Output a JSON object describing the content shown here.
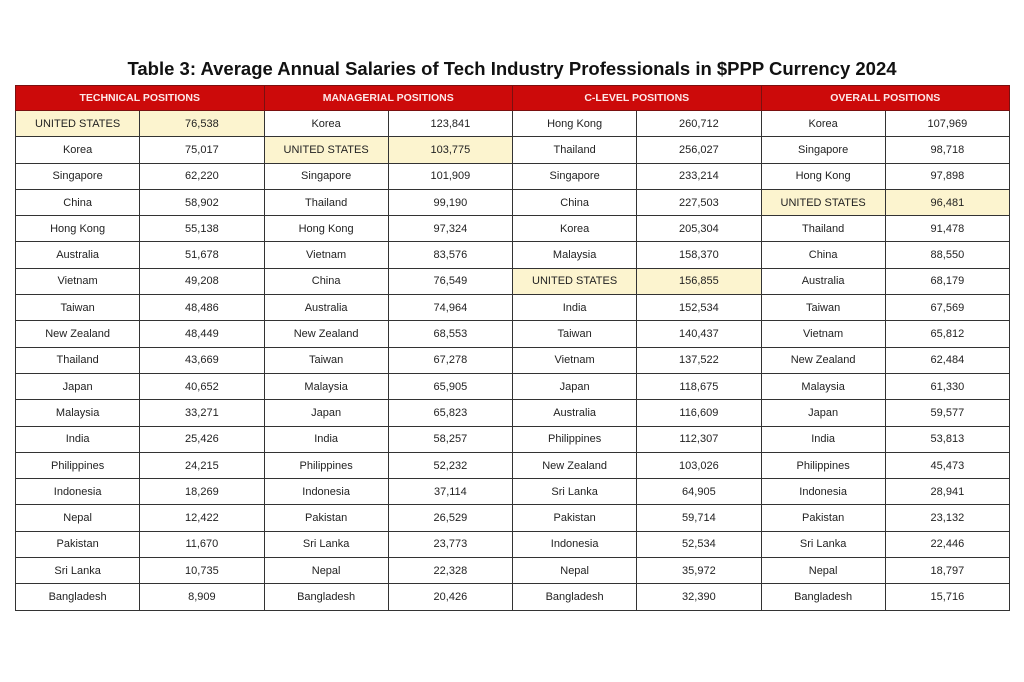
{
  "title": "Table 3: Average Annual Salaries of Tech Industry Professionals in $PPP Currency 2024",
  "highlight_color": "#fcf4cf",
  "header_color": "#cc0a0a",
  "groups": [
    {
      "label": "TECHNICAL POSITIONS",
      "rows": [
        [
          "UNITED STATES",
          "76,538"
        ],
        [
          "Korea",
          "75,017"
        ],
        [
          "Singapore",
          "62,220"
        ],
        [
          "China",
          "58,902"
        ],
        [
          "Hong Kong",
          "55,138"
        ],
        [
          "Australia",
          "51,678"
        ],
        [
          "Vietnam",
          "49,208"
        ],
        [
          "Taiwan",
          "48,486"
        ],
        [
          "New Zealand",
          "48,449"
        ],
        [
          "Thailand",
          "43,669"
        ],
        [
          "Japan",
          "40,652"
        ],
        [
          "Malaysia",
          "33,271"
        ],
        [
          "India",
          "25,426"
        ],
        [
          "Philippines",
          "24,215"
        ],
        [
          "Indonesia",
          "18,269"
        ],
        [
          "Nepal",
          "12,422"
        ],
        [
          "Pakistan",
          "11,670"
        ],
        [
          "Sri Lanka",
          "10,735"
        ],
        [
          "Bangladesh",
          "8,909"
        ]
      ]
    },
    {
      "label": "MANAGERIAL POSITIONS",
      "rows": [
        [
          "Korea",
          "123,841"
        ],
        [
          "UNITED STATES",
          "103,775"
        ],
        [
          "Singapore",
          "101,909"
        ],
        [
          "Thailand",
          "99,190"
        ],
        [
          "Hong Kong",
          "97,324"
        ],
        [
          "Vietnam",
          "83,576"
        ],
        [
          "China",
          "76,549"
        ],
        [
          "Australia",
          "74,964"
        ],
        [
          "New Zealand",
          "68,553"
        ],
        [
          "Taiwan",
          "67,278"
        ],
        [
          "Malaysia",
          "65,905"
        ],
        [
          "Japan",
          "65,823"
        ],
        [
          "India",
          "58,257"
        ],
        [
          "Philippines",
          "52,232"
        ],
        [
          "Indonesia",
          "37,114"
        ],
        [
          "Pakistan",
          "26,529"
        ],
        [
          "Sri Lanka",
          "23,773"
        ],
        [
          "Nepal",
          "22,328"
        ],
        [
          "Bangladesh",
          "20,426"
        ]
      ]
    },
    {
      "label": "C-LEVEL POSITIONS",
      "rows": [
        [
          "Hong Kong",
          "260,712"
        ],
        [
          "Thailand",
          "256,027"
        ],
        [
          "Singapore",
          "233,214"
        ],
        [
          "China",
          "227,503"
        ],
        [
          "Korea",
          "205,304"
        ],
        [
          "Malaysia",
          "158,370"
        ],
        [
          "UNITED STATES",
          "156,855"
        ],
        [
          "India",
          "152,534"
        ],
        [
          "Taiwan",
          "140,437"
        ],
        [
          "Vietnam",
          "137,522"
        ],
        [
          "Japan",
          "118,675"
        ],
        [
          "Australia",
          "116,609"
        ],
        [
          "Philippines",
          "112,307"
        ],
        [
          "New Zealand",
          "103,026"
        ],
        [
          "Sri Lanka",
          "64,905"
        ],
        [
          "Pakistan",
          "59,714"
        ],
        [
          "Indonesia",
          "52,534"
        ],
        [
          "Nepal",
          "35,972"
        ],
        [
          "Bangladesh",
          "32,390"
        ]
      ]
    },
    {
      "label": "OVERALL POSITIONS",
      "rows": [
        [
          "Korea",
          "107,969"
        ],
        [
          "Singapore",
          "98,718"
        ],
        [
          "Hong Kong",
          "97,898"
        ],
        [
          "UNITED STATES",
          "96,481"
        ],
        [
          "Thailand",
          "91,478"
        ],
        [
          "China",
          "88,550"
        ],
        [
          "Australia",
          "68,179"
        ],
        [
          "Taiwan",
          "67,569"
        ],
        [
          "Vietnam",
          "65,812"
        ],
        [
          "New Zealand",
          "62,484"
        ],
        [
          "Malaysia",
          "61,330"
        ],
        [
          "Japan",
          "59,577"
        ],
        [
          "India",
          "53,813"
        ],
        [
          "Philippines",
          "45,473"
        ],
        [
          "Indonesia",
          "28,941"
        ],
        [
          "Pakistan",
          "23,132"
        ],
        [
          "Sri Lanka",
          "22,446"
        ],
        [
          "Nepal",
          "18,797"
        ],
        [
          "Bangladesh",
          "15,716"
        ]
      ]
    }
  ]
}
